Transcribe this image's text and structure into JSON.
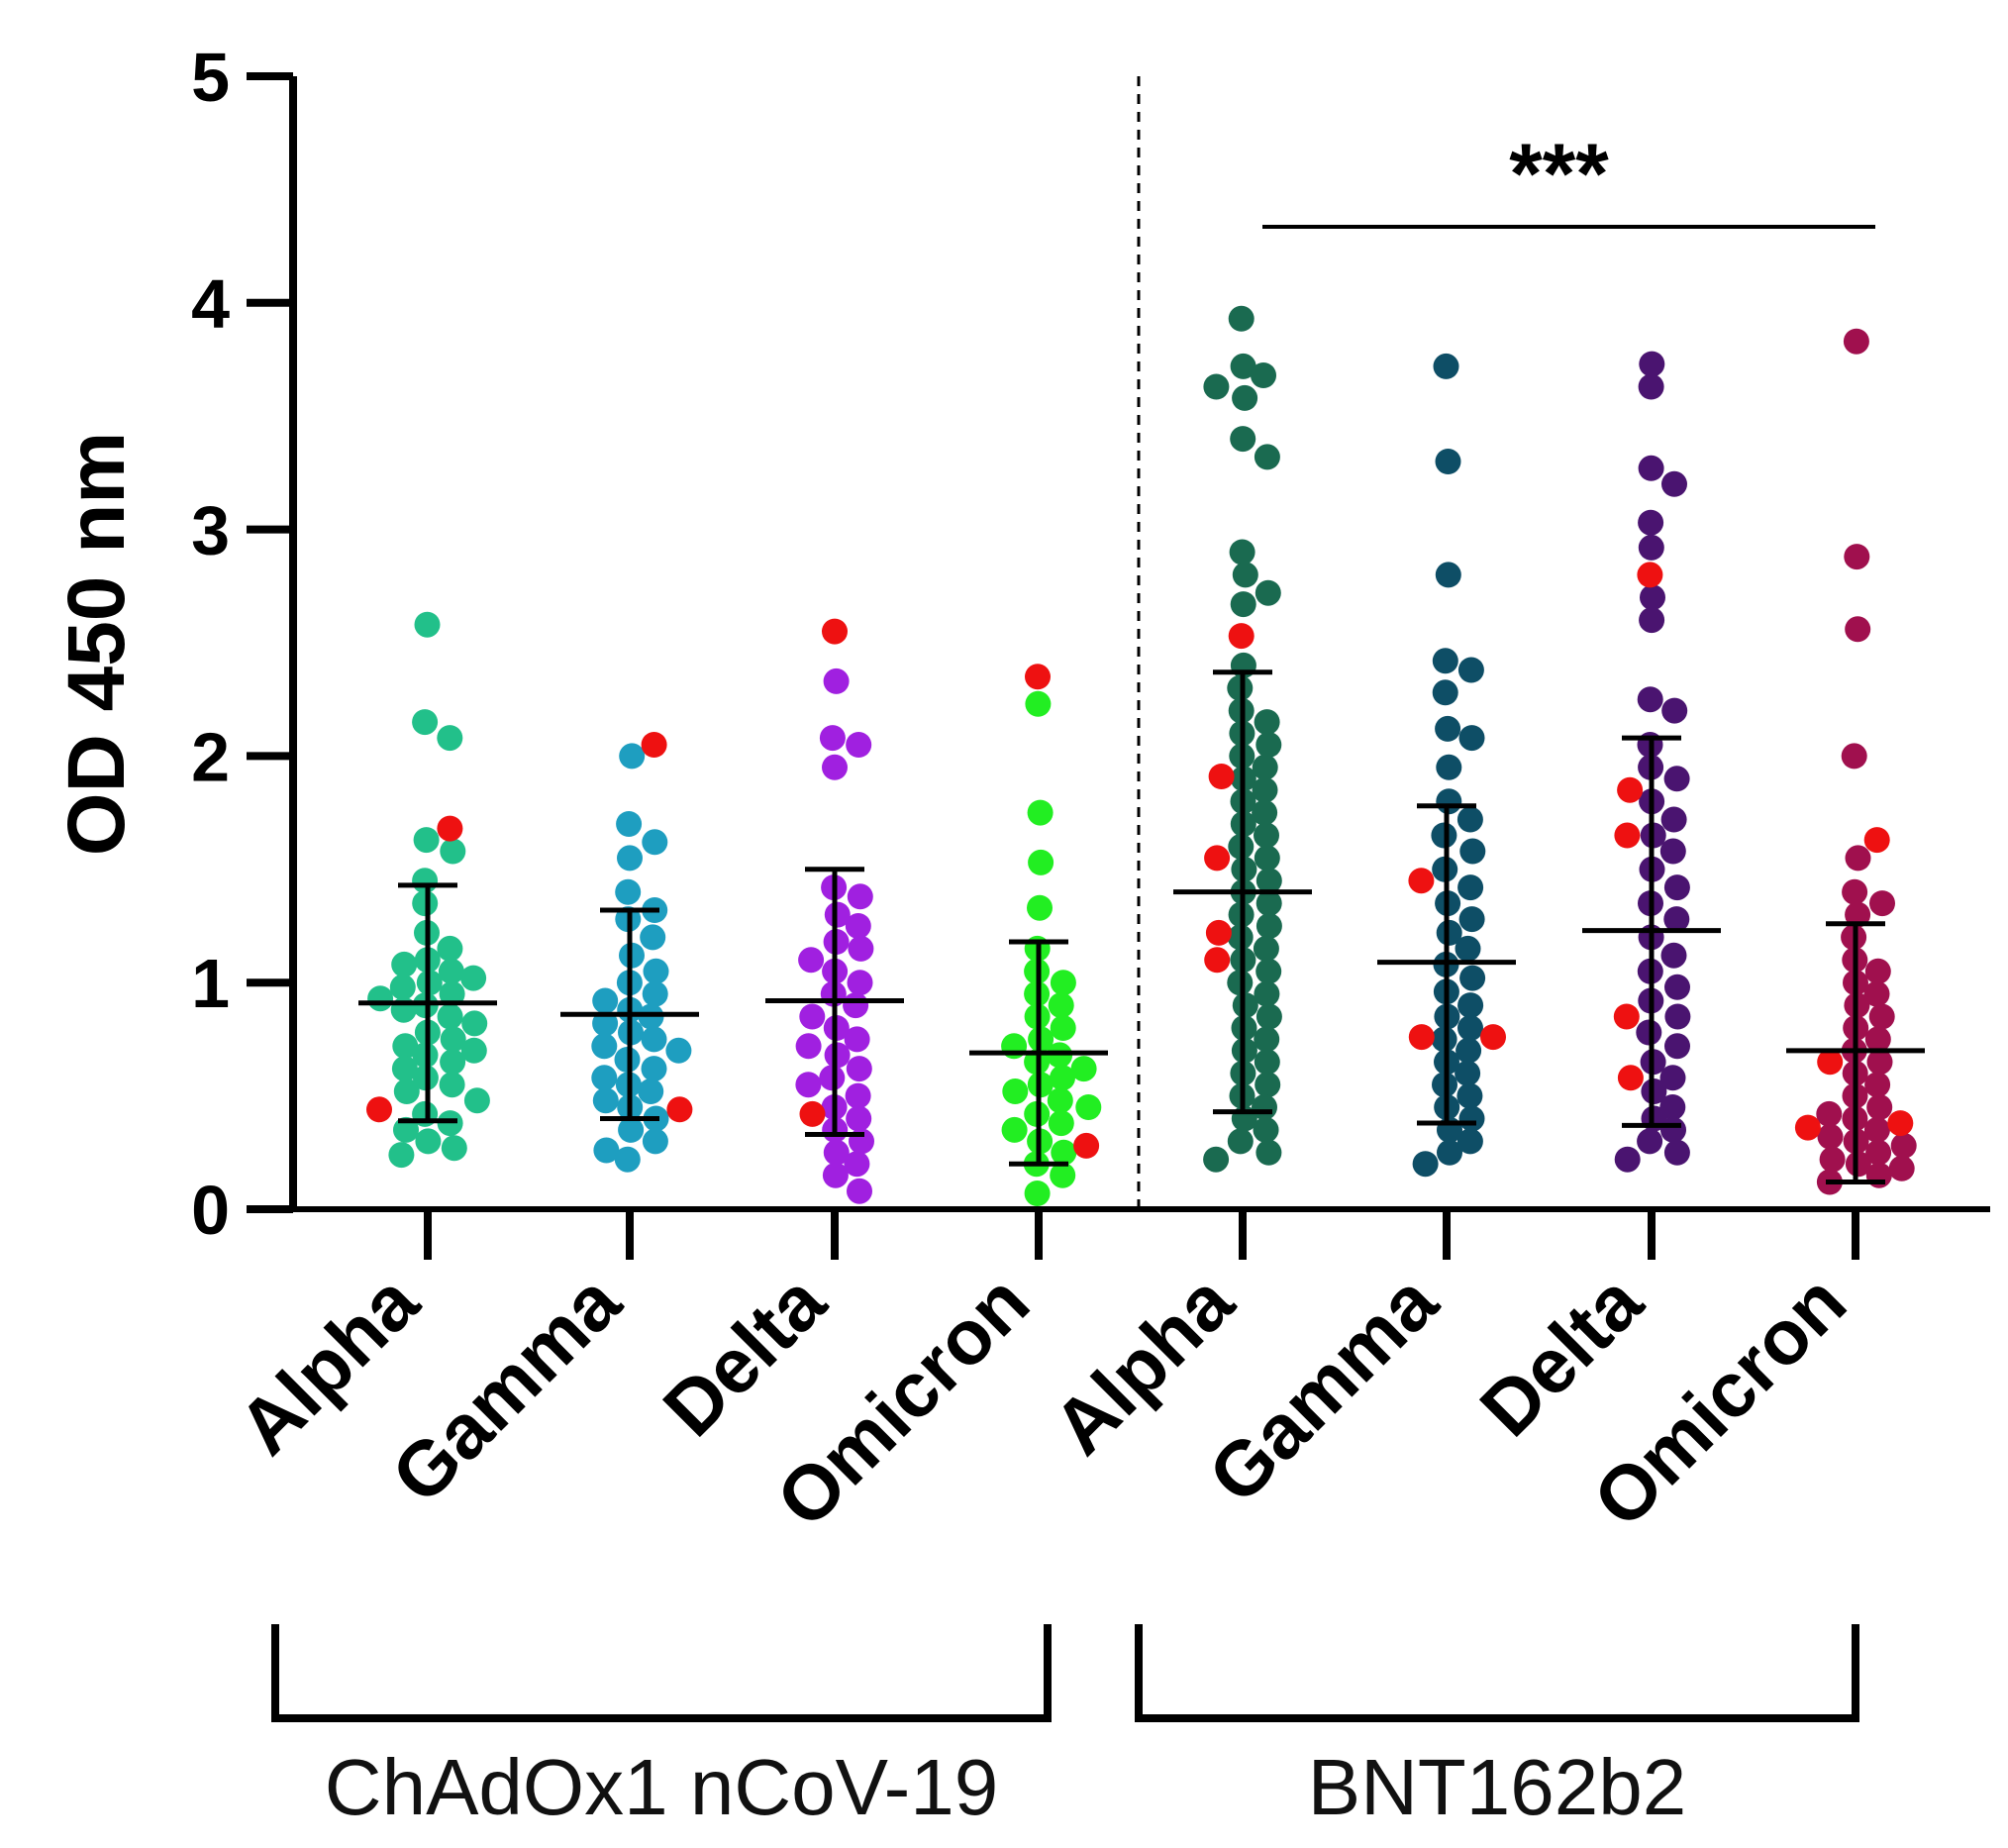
{
  "chart_data": {
    "type": "scatter",
    "subtype": "dot-plot with mean and SD error bars",
    "ylabel": "OD 450 nm",
    "ylim": [
      0,
      5
    ],
    "yticks": [
      "0",
      "1",
      "2",
      "3",
      "4",
      "5"
    ],
    "categories": [
      "Alpha",
      "Gamma",
      "Delta",
      "Omicron",
      "Alpha",
      "Gamma",
      "Delta",
      "Omicron"
    ],
    "groups": [
      {
        "label": "ChAdOx1 nCoV-19",
        "category_indices": [
          0,
          1,
          2,
          3
        ]
      },
      {
        "label": "BNT162b2",
        "category_indices": [
          4,
          5,
          6,
          7
        ]
      }
    ],
    "significance": {
      "label": "***",
      "from_category": 4,
      "to_category": 7,
      "y": 4.35
    },
    "separator": {
      "style": "dashed",
      "between_categories": [
        3,
        4
      ]
    },
    "highlight_color": "#ee1111",
    "series": [
      {
        "name": "ChAdOx1 Alpha",
        "color": "#22c08a",
        "mean": 0.91,
        "sd_low": 0.39,
        "sd_high": 1.43,
        "values": [
          2.58,
          2.15,
          2.08,
          1.63,
          1.58,
          1.45,
          1.35,
          1.22,
          1.15,
          1.1,
          1.08,
          1.05,
          1.02,
          1.0,
          0.98,
          0.95,
          0.93,
          0.9,
          0.88,
          0.85,
          0.82,
          0.78,
          0.75,
          0.72,
          0.7,
          0.68,
          0.65,
          0.62,
          0.58,
          0.55,
          0.52,
          0.48,
          0.42,
          0.38,
          0.35,
          0.3,
          0.27,
          0.24
        ],
        "highlighted": [
          1.68,
          0.44
        ]
      },
      {
        "name": "ChAdOx1 Gamma",
        "color": "#1e9ec0",
        "mean": 0.86,
        "sd_low": 0.4,
        "sd_high": 1.32,
        "values": [
          2.0,
          1.7,
          1.62,
          1.55,
          1.4,
          1.32,
          1.28,
          1.2,
          1.12,
          1.05,
          1.0,
          0.95,
          0.92,
          0.88,
          0.85,
          0.82,
          0.78,
          0.75,
          0.72,
          0.7,
          0.66,
          0.62,
          0.58,
          0.55,
          0.52,
          0.48,
          0.45,
          0.4,
          0.35,
          0.3,
          0.26,
          0.22
        ],
        "highlighted": [
          2.05,
          0.44
        ]
      },
      {
        "name": "ChAdOx1 Delta",
        "color": "#a020e0",
        "mean": 0.92,
        "sd_low": 0.33,
        "sd_high": 1.5,
        "values": [
          2.33,
          2.08,
          2.05,
          1.95,
          1.42,
          1.38,
          1.3,
          1.25,
          1.18,
          1.15,
          1.1,
          1.05,
          1.0,
          0.95,
          0.9,
          0.85,
          0.8,
          0.75,
          0.72,
          0.68,
          0.62,
          0.58,
          0.55,
          0.5,
          0.45,
          0.4,
          0.35,
          0.3,
          0.25,
          0.2,
          0.15,
          0.08
        ],
        "highlighted": [
          2.55,
          0.42
        ]
      },
      {
        "name": "ChAdOx1 Omicron",
        "color": "#22ee22",
        "mean": 0.69,
        "sd_low": 0.2,
        "sd_high": 1.18,
        "values": [
          2.23,
          1.75,
          1.53,
          1.33,
          1.15,
          1.05,
          1.0,
          0.95,
          0.9,
          0.85,
          0.8,
          0.75,
          0.72,
          0.68,
          0.65,
          0.62,
          0.58,
          0.55,
          0.52,
          0.48,
          0.45,
          0.42,
          0.38,
          0.35,
          0.3,
          0.25,
          0.2,
          0.15,
          0.07
        ],
        "highlighted": [
          2.35,
          0.28
        ]
      },
      {
        "name": "BNT162b2 Alpha",
        "color": "#1a6a50",
        "mean": 1.4,
        "sd_low": 0.43,
        "sd_high": 2.37,
        "values": [
          3.93,
          3.72,
          3.68,
          3.63,
          3.58,
          3.4,
          3.32,
          2.9,
          2.8,
          2.72,
          2.67,
          2.4,
          2.3,
          2.2,
          2.15,
          2.1,
          2.05,
          2.0,
          1.95,
          1.9,
          1.85,
          1.8,
          1.75,
          1.7,
          1.65,
          1.6,
          1.55,
          1.5,
          1.45,
          1.4,
          1.35,
          1.3,
          1.25,
          1.2,
          1.15,
          1.1,
          1.05,
          1.0,
          0.95,
          0.9,
          0.85,
          0.8,
          0.75,
          0.7,
          0.65,
          0.6,
          0.55,
          0.5,
          0.45,
          0.4,
          0.35,
          0.3,
          0.25,
          0.22
        ],
        "highlighted": [
          2.53,
          1.91,
          1.55,
          1.22,
          1.1
        ]
      },
      {
        "name": "BNT162b2 Gamma",
        "color": "#0e4e66",
        "mean": 1.09,
        "sd_low": 0.38,
        "sd_high": 1.78,
        "values": [
          3.72,
          3.3,
          2.8,
          2.42,
          2.38,
          2.28,
          2.12,
          2.08,
          1.95,
          1.8,
          1.72,
          1.65,
          1.58,
          1.5,
          1.42,
          1.35,
          1.28,
          1.22,
          1.15,
          1.08,
          1.02,
          0.96,
          0.9,
          0.85,
          0.8,
          0.75,
          0.7,
          0.65,
          0.6,
          0.55,
          0.5,
          0.45,
          0.4,
          0.35,
          0.3,
          0.25,
          0.2
        ],
        "highlighted": [
          1.45,
          0.76,
          0.76
        ]
      },
      {
        "name": "BNT162b2 Delta",
        "color": "#4a1470",
        "mean": 1.23,
        "sd_low": 0.37,
        "sd_high": 2.08,
        "values": [
          3.73,
          3.63,
          3.27,
          3.2,
          3.03,
          2.92,
          2.7,
          2.6,
          2.25,
          2.2,
          2.05,
          1.95,
          1.9,
          1.8,
          1.72,
          1.65,
          1.58,
          1.5,
          1.42,
          1.35,
          1.28,
          1.2,
          1.12,
          1.05,
          0.98,
          0.92,
          0.85,
          0.78,
          0.72,
          0.65,
          0.58,
          0.52,
          0.45,
          0.4,
          0.35,
          0.3,
          0.25,
          0.22
        ],
        "highlighted": [
          2.8,
          1.85,
          1.65,
          0.85,
          0.58
        ]
      },
      {
        "name": "BNT162b2 Omicron",
        "color": "#a0104e",
        "mean": 0.7,
        "sd_low": 0.12,
        "sd_high": 1.26,
        "values": [
          3.83,
          2.88,
          2.56,
          2.0,
          1.55,
          1.4,
          1.35,
          1.3,
          1.2,
          1.1,
          1.05,
          1.0,
          0.95,
          0.9,
          0.85,
          0.8,
          0.75,
          0.7,
          0.65,
          0.6,
          0.55,
          0.5,
          0.45,
          0.42,
          0.4,
          0.35,
          0.32,
          0.3,
          0.28,
          0.25,
          0.22,
          0.2,
          0.18,
          0.15,
          0.12
        ],
        "highlighted": [
          1.63,
          0.65,
          0.38,
          0.36
        ]
      }
    ]
  }
}
